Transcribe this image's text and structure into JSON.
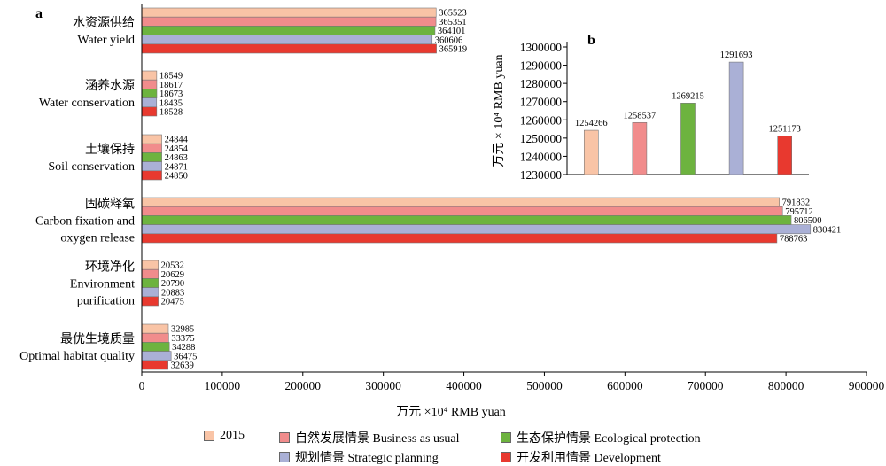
{
  "chart_data": [
    {
      "panel_label": "a",
      "type": "bar",
      "orientation": "horizontal",
      "categories": [
        {
          "zh": "水资源供给",
          "en": [
            "Water yield"
          ]
        },
        {
          "zh": "涵养水源",
          "en": [
            "Water conservation"
          ]
        },
        {
          "zh": "土壤保持",
          "en": [
            "Soil conservation"
          ]
        },
        {
          "zh": "固碳释氧",
          "en": [
            "Carbon fixation and",
            "oxygen release"
          ]
        },
        {
          "zh": "环境净化",
          "en": [
            "Environment",
            "purification"
          ]
        },
        {
          "zh": "最优生境质量",
          "en": [
            "Optimal habitat quality"
          ]
        }
      ],
      "series": [
        {
          "name": "2015",
          "values": [
            365523,
            18549,
            24844,
            791832,
            20532,
            32985
          ]
        },
        {
          "name": "自然发展情景 Business as usual",
          "values": [
            365351,
            18617,
            24854,
            795712,
            20629,
            33375
          ]
        },
        {
          "name": "生态保护情景 Ecological protection",
          "values": [
            364101,
            18673,
            24863,
            806500,
            20790,
            34288
          ]
        },
        {
          "name": "规划情景 Strategic planning",
          "values": [
            360606,
            18435,
            24871,
            830421,
            20883,
            36475
          ]
        },
        {
          "name": "开发利用情景 Development",
          "values": [
            365919,
            18528,
            24850,
            788763,
            20475,
            32639
          ]
        }
      ],
      "xlabel": "万元 ×10⁴ RMB yuan",
      "xlim": [
        0,
        900000
      ],
      "xticks": [
        "0",
        "100000",
        "200000",
        "300000",
        "400000",
        "500000",
        "600000",
        "700000",
        "800000",
        "900000"
      ],
      "legend": "bottom"
    },
    {
      "panel_label": "b",
      "type": "bar",
      "categories": [
        "2015",
        "自然发展情景 Business as usual",
        "生态保护情景 Ecological protection",
        "规划情景 Strategic planning",
        "开发利用情景 Development"
      ],
      "values": [
        1254266,
        1258537,
        1269215,
        1291693,
        1251173
      ],
      "ylabel": "万元 × 10⁴ RMB yuan",
      "ylim": [
        1230000,
        1300000
      ],
      "yticks": [
        "1230000",
        "1240000",
        "1250000",
        "1260000",
        "1270000",
        "1280000",
        "1290000",
        "1300000"
      ]
    }
  ],
  "colors": [
    "#f9c4a6",
    "#f18c8c",
    "#6db33f",
    "#aab0d6",
    "#e8392f"
  ],
  "legend_items": [
    {
      "label": "2015"
    },
    {
      "label": "自然发展情景 Business as usual"
    },
    {
      "label": "生态保护情景 Ecological protection"
    },
    {
      "label": "规划情景 Strategic planning"
    },
    {
      "label": "开发利用情景 Development"
    }
  ]
}
